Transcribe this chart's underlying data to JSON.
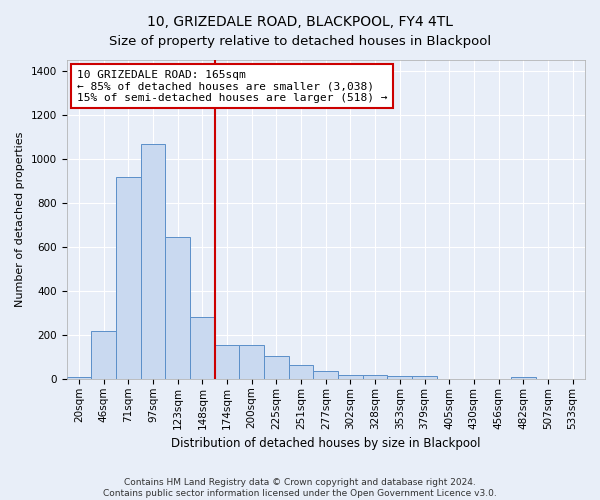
{
  "title": "10, GRIZEDALE ROAD, BLACKPOOL, FY4 4TL",
  "subtitle": "Size of property relative to detached houses in Blackpool",
  "xlabel": "Distribution of detached houses by size in Blackpool",
  "ylabel": "Number of detached properties",
  "bar_labels": [
    "20sqm",
    "46sqm",
    "71sqm",
    "97sqm",
    "123sqm",
    "148sqm",
    "174sqm",
    "200sqm",
    "225sqm",
    "251sqm",
    "277sqm",
    "302sqm",
    "328sqm",
    "353sqm",
    "379sqm",
    "405sqm",
    "430sqm",
    "456sqm",
    "482sqm",
    "507sqm",
    "533sqm"
  ],
  "bar_values": [
    10,
    220,
    920,
    1070,
    645,
    280,
    155,
    155,
    105,
    65,
    35,
    20,
    20,
    12,
    12,
    0,
    0,
    0,
    10,
    0,
    0
  ],
  "bar_color": "#c9d9f0",
  "bar_edge_color": "#5b8fc9",
  "vline_x": 5.5,
  "vline_color": "#cc0000",
  "annotation_line1": "10 GRIZEDALE ROAD: 165sqm",
  "annotation_line2": "← 85% of detached houses are smaller (3,038)",
  "annotation_line3": "15% of semi-detached houses are larger (518) →",
  "annotation_box_color": "#ffffff",
  "annotation_box_edge_color": "#cc0000",
  "ylim": [
    0,
    1450
  ],
  "yticks": [
    0,
    200,
    400,
    600,
    800,
    1000,
    1200,
    1400
  ],
  "bg_color": "#e8eef8",
  "axes_bg_color": "#e8eef8",
  "footer_line1": "Contains HM Land Registry data © Crown copyright and database right 2024.",
  "footer_line2": "Contains public sector information licensed under the Open Government Licence v3.0.",
  "title_fontsize": 10,
  "subtitle_fontsize": 9.5,
  "xlabel_fontsize": 8.5,
  "ylabel_fontsize": 8,
  "tick_fontsize": 7.5,
  "annotation_fontsize": 8,
  "footer_fontsize": 6.5
}
